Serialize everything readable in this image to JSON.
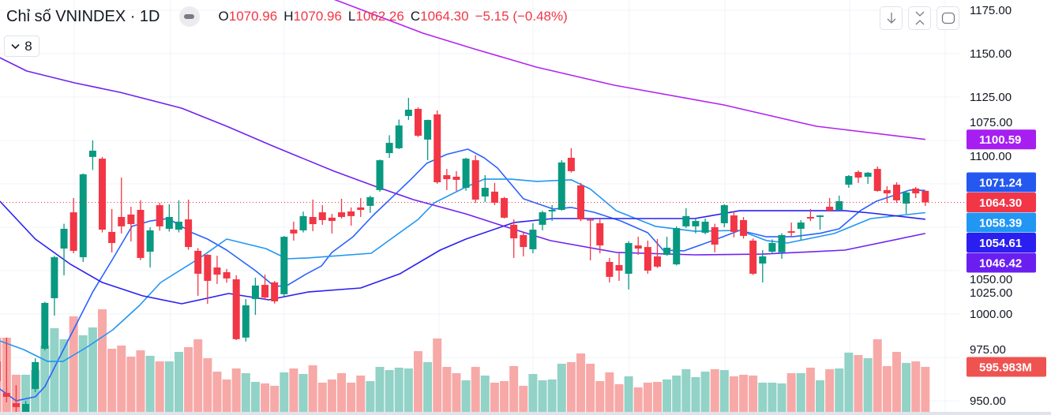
{
  "header": {
    "title": "Chỉ số VNINDEX · 1D",
    "o_label": "O",
    "o_value": "1070.96",
    "h_label": "H",
    "h_value": "1070.96",
    "l_label": "L",
    "l_value": "1062.26",
    "c_label": "C",
    "c_value": "1064.30",
    "change": "−5.15 (−0.48%)",
    "indicator_count": "8"
  },
  "toolbar": {
    "scroll_to_latest_icon": "arrow-down-icon",
    "auto_scale_icon": "collapse-vertical-icon",
    "fullscreen_icon": "fullscreen-icon"
  },
  "colors": {
    "up": "#089981",
    "down": "#f23645",
    "volume_up": "#92d2c7",
    "volume_down": "#f7a9a7",
    "ma_purple": "#b124f2",
    "ma_blue": "#2962ff",
    "ma_lightblue": "#2196f3",
    "ma_indigo": "#2a1ff0",
    "ma_violet": "#7022f0"
  },
  "chart_data": {
    "type": "candlestick",
    "title": "Chỉ số VNINDEX · 1D",
    "ylim": [
      944,
      1181
    ],
    "y_ticks": [
      "1175.00",
      "1150.00",
      "1125.00",
      "1100.00",
      "1075.00",
      "1050.00",
      "1025.00",
      "1000.00",
      "975.00",
      "950.00"
    ],
    "y_tick_values": [
      1175,
      1150,
      1125,
      1100,
      1075,
      1050,
      1025,
      1000,
      975,
      950
    ],
    "grid": true,
    "last_price": 1064.3,
    "candles_ohlc": [
      [
        972.7,
        975,
        958,
        961.4
      ],
      [
        954.5,
        986.4,
        949.1,
        952.3
      ],
      [
        948.6,
        959,
        943,
        946.4
      ],
      [
        943.2,
        950,
        941,
        948.2
      ],
      [
        956.8,
        974.5,
        955,
        972.3
      ],
      [
        980.0,
        1007,
        979,
        1006.4
      ],
      [
        1009.1,
        1033.5,
        999.1,
        1032.7
      ],
      [
        1037.7,
        1052,
        1022.3,
        1049.1
      ],
      [
        1058.6,
        1066.8,
        1035,
        1036.4
      ],
      [
        1032.7,
        1081,
        1030,
        1080.5
      ],
      [
        1090.5,
        1100,
        1083,
        1094.1
      ],
      [
        1089.5,
        1090.5,
        1047,
        1048.6
      ],
      [
        1047.3,
        1060.5,
        1035.5,
        1040.9
      ],
      [
        1055.9,
        1078.6,
        1046.4,
        1050.5
      ],
      [
        1057.3,
        1061.8,
        1041.8,
        1051.8
      ],
      [
        1060.0,
        1065.5,
        1031,
        1032.3
      ],
      [
        1035.9,
        1050,
        1026.8,
        1048.2
      ],
      [
        1062.7,
        1064,
        1048,
        1050.5
      ],
      [
        1049.1,
        1063.2,
        1047.5,
        1055.9
      ],
      [
        1048.6,
        1065.5,
        1047,
        1053.2
      ],
      [
        1054.5,
        1065.9,
        1037,
        1038.6
      ],
      [
        1036.4,
        1038,
        1010.5,
        1023.2
      ],
      [
        1034.1,
        1034.5,
        1005.9,
        1019.1
      ],
      [
        1026.8,
        1033.6,
        1017.3,
        1022.7
      ],
      [
        1024.1,
        1026,
        1018,
        1020.5
      ],
      [
        1020.0,
        1022.3,
        985,
        985.5
      ],
      [
        986.4,
        1008.6,
        984.1,
        1005.0
      ],
      [
        1008.6,
        1020.9,
        999.5,
        1016.4
      ],
      [
        1016.8,
        1022.7,
        1008,
        1009.5
      ],
      [
        1018.2,
        1019,
        1006,
        1007.3
      ],
      [
        1011.4,
        1045,
        1010,
        1044.5
      ],
      [
        1048.6,
        1053.2,
        1042.3,
        1046.4
      ],
      [
        1048.2,
        1059,
        1047,
        1056.4
      ],
      [
        1055.9,
        1065.9,
        1047.7,
        1051.8
      ],
      [
        1058.6,
        1062.7,
        1051.4,
        1054.1
      ],
      [
        1055.5,
        1057.7,
        1046.4,
        1053.6
      ],
      [
        1058.6,
        1066.4,
        1055.0,
        1055.9
      ],
      [
        1059.1,
        1061.4,
        1050.9,
        1056.4
      ],
      [
        1061.4,
        1066.8,
        1055.9,
        1060.0
      ],
      [
        1062.3,
        1068.2,
        1058.2,
        1067.3
      ],
      [
        1071.4,
        1089,
        1070.5,
        1088.6
      ],
      [
        1092.7,
        1103,
        1090,
        1098.6
      ],
      [
        1095.5,
        1112,
        1095,
        1108.6
      ],
      [
        1114.1,
        1124.5,
        1111.8,
        1117.7
      ],
      [
        1118.2,
        1119,
        1102,
        1102.7
      ],
      [
        1100.5,
        1112,
        1088.6,
        1111.8
      ],
      [
        1115.0,
        1117.3,
        1075,
        1075.9
      ],
      [
        1080.0,
        1083.6,
        1071.4,
        1077.7
      ],
      [
        1079.1,
        1082.3,
        1070.9,
        1077.3
      ],
      [
        1072.7,
        1090,
        1071,
        1089.5
      ],
      [
        1088.6,
        1091.5,
        1064,
        1065.9
      ],
      [
        1067.7,
        1080,
        1064.5,
        1072.7
      ],
      [
        1070.5,
        1075.5,
        1062.7,
        1064.1
      ],
      [
        1066.8,
        1067.5,
        1055,
        1055.5
      ],
      [
        1051.4,
        1054.5,
        1032.3,
        1043.6
      ],
      [
        1045.5,
        1047,
        1033.2,
        1038.6
      ],
      [
        1037.3,
        1052.3,
        1035,
        1048.6
      ],
      [
        1051.4,
        1059.5,
        1048.2,
        1058.6
      ],
      [
        1059.1,
        1062.7,
        1053.6,
        1060.0
      ],
      [
        1060.0,
        1088.6,
        1059.5,
        1087.3
      ],
      [
        1090.0,
        1095.5,
        1081.5,
        1082.3
      ],
      [
        1074.1,
        1075.5,
        1053.5,
        1054.5
      ],
      [
        1054.5,
        1055,
        1030.9,
        1054.1
      ],
      [
        1052.3,
        1055,
        1035.0,
        1039.5
      ],
      [
        1030.0,
        1032.3,
        1018.2,
        1021.4
      ],
      [
        1028.2,
        1035,
        1019.1,
        1025.0
      ],
      [
        1023.2,
        1042,
        1014.1,
        1040.9
      ],
      [
        1039.5,
        1044.5,
        1034.1,
        1037.7
      ],
      [
        1038.6,
        1042.3,
        1023.2,
        1025.0
      ],
      [
        1033.2,
        1043.2,
        1026.5,
        1027.3
      ],
      [
        1034.1,
        1044.5,
        1033.5,
        1038.2
      ],
      [
        1028.6,
        1050.5,
        1028,
        1049.5
      ],
      [
        1050.5,
        1060.9,
        1049.5,
        1056.4
      ],
      [
        1050.5,
        1055,
        1046.5,
        1053.6
      ],
      [
        1046.8,
        1055,
        1045.9,
        1053.2
      ],
      [
        1050.0,
        1052,
        1035.5,
        1040.0
      ],
      [
        1052.3,
        1063.2,
        1050.0,
        1062.7
      ],
      [
        1056.8,
        1059.1,
        1044.1,
        1047.3
      ],
      [
        1054.1,
        1055.9,
        1043.5,
        1045.0
      ],
      [
        1042.3,
        1043.5,
        1022.5,
        1023.2
      ],
      [
        1029.1,
        1036.8,
        1018.2,
        1033.2
      ],
      [
        1035.9,
        1043,
        1034.5,
        1040.9
      ],
      [
        1035.5,
        1046.5,
        1031.8,
        1045.5
      ],
      [
        1047.7,
        1052.7,
        1044.5,
        1046.8
      ],
      [
        1049.1,
        1054.1,
        1042.7,
        1052.7
      ],
      [
        1055.9,
        1060.5,
        1053.5,
        1055.0
      ],
      [
        1055.9,
        1057,
        1048.6,
        1056.8
      ],
      [
        1061.8,
        1066.8,
        1059,
        1059.5
      ],
      [
        1060.0,
        1068.2,
        1059.5,
        1065.0
      ],
      [
        1074.5,
        1080,
        1072.7,
        1079.5
      ],
      [
        1081.8,
        1082.7,
        1075.5,
        1078.6
      ],
      [
        1079.1,
        1081.9,
        1075.0,
        1081.4
      ],
      [
        1083.6,
        1085.0,
        1070.5,
        1070.9
      ],
      [
        1071.4,
        1073.6,
        1064.1,
        1069.5
      ],
      [
        1074.5,
        1075.9,
        1064.1,
        1065.5
      ],
      [
        1063.6,
        1070.9,
        1057.7,
        1070.0
      ],
      [
        1072.3,
        1073.2,
        1066.8,
        1069.5
      ],
      [
        1070.96,
        1070.96,
        1062.26,
        1064.3
      ]
    ],
    "volume_millions": [
      983,
      983,
      492,
      492,
      554,
      879,
      1109,
      962,
      1266,
      1015,
      1119,
      1360,
      837,
      879,
      732,
      816,
      743,
      669,
      669,
      795,
      858,
      962,
      711,
      533,
      429,
      575,
      513,
      397,
      377,
      345,
      523,
      575,
      502,
      617,
      387,
      429,
      513,
      387,
      481,
      408,
      596,
      554,
      586,
      575,
      805,
      659,
      973,
      596,
      513,
      418,
      596,
      481,
      387,
      408,
      607,
      345,
      502,
      418,
      429,
      638,
      659,
      774,
      638,
      408,
      523,
      366,
      471,
      324,
      387,
      397,
      429,
      481,
      565,
      460,
      533,
      565,
      554,
      471,
      492,
      481,
      387,
      387,
      377,
      513,
      513,
      586,
      418,
      565,
      575,
      785,
      753,
      711,
      962,
      607,
      795,
      649,
      669,
      595.983
    ],
    "moving_averages": [
      {
        "name": "ma-purple",
        "color": "#b124f2",
        "last": 1100.59,
        "points": [
          [
            25,
            1199
          ],
          [
            35.4,
            1180.9
          ],
          [
            44.5,
            1161.8
          ],
          [
            49.9,
            1152.7
          ],
          [
            56.3,
            1142.3
          ],
          [
            64.5,
            1131.8
          ],
          [
            75.9,
            1120.5
          ],
          [
            85.6,
            1108.2
          ],
          [
            97,
            1100.59
          ]
        ]
      },
      {
        "name": "ma-blue",
        "color": "#2962ff",
        "last": 1071.24,
        "points": [
          [
            0.3,
            956.8
          ],
          [
            2,
            950.0
          ],
          [
            4,
            952.3
          ],
          [
            5,
            958.2
          ],
          [
            7.2,
            982.3
          ],
          [
            10,
            1012.7
          ],
          [
            12.1,
            1031.8
          ],
          [
            14.1,
            1050.5
          ],
          [
            16,
            1053.6
          ],
          [
            17.9,
            1055.0
          ],
          [
            20.4,
            1046.8
          ],
          [
            22,
            1043.2
          ],
          [
            24,
            1036.8
          ],
          [
            27,
            1025.0
          ],
          [
            29,
            1015.9
          ],
          [
            30.3,
            1016.4
          ],
          [
            32.2,
            1022.7
          ],
          [
            33.9,
            1027.7
          ],
          [
            35,
            1035.5
          ],
          [
            37.2,
            1044.5
          ],
          [
            39.3,
            1056.8
          ],
          [
            43.2,
            1077.3
          ],
          [
            44.9,
            1086.8
          ],
          [
            47,
            1092
          ],
          [
            49.2,
            1095.0
          ],
          [
            50.9,
            1090.0
          ],
          [
            52.3,
            1084.1
          ],
          [
            55,
            1066.4
          ],
          [
            58.1,
            1060.5
          ],
          [
            60,
            1061.4
          ],
          [
            62.4,
            1058.6
          ],
          [
            65.2,
            1053.6
          ],
          [
            68,
            1046.8
          ],
          [
            69.6,
            1036.8
          ],
          [
            71.8,
            1036.4
          ],
          [
            74.8,
            1042.3
          ],
          [
            77.6,
            1048.2
          ],
          [
            80.4,
            1044.5
          ],
          [
            83.1,
            1044.5
          ],
          [
            86,
            1046.5
          ],
          [
            88,
            1049.1
          ],
          [
            90.2,
            1059.5
          ],
          [
            91.9,
            1065.0
          ],
          [
            95.4,
            1071.4
          ],
          [
            97,
            1071.24
          ]
        ]
      },
      {
        "name": "ma-lightblue",
        "color": "#2196f3",
        "last": 1058.39,
        "points": [
          [
            0.3,
            984.5
          ],
          [
            2.8,
            979.5
          ],
          [
            5.3,
            972.7
          ],
          [
            6.9,
            972.7
          ],
          [
            9.4,
            980.9
          ],
          [
            12.1,
            990.9
          ],
          [
            14.9,
            1005.0
          ],
          [
            17.1,
            1018.2
          ],
          [
            21.2,
            1032.3
          ],
          [
            24,
            1043.2
          ],
          [
            28.1,
            1037.7
          ],
          [
            30.3,
            1031.8
          ],
          [
            32.5,
            1032.3
          ],
          [
            39.1,
            1035.0
          ],
          [
            44,
            1054.5
          ],
          [
            45.7,
            1064.1
          ],
          [
            49,
            1073.2
          ],
          [
            50.9,
            1077.7
          ],
          [
            53.7,
            1077.7
          ],
          [
            56.4,
            1076.4
          ],
          [
            60,
            1077.3
          ],
          [
            62,
            1072
          ],
          [
            64.7,
            1059.5
          ],
          [
            68.8,
            1050.5
          ],
          [
            72.9,
            1047.7
          ],
          [
            77.6,
            1048.2
          ],
          [
            80.4,
            1042.3
          ],
          [
            82.6,
            1040.9
          ],
          [
            87.5,
            1046.4
          ],
          [
            91.3,
            1055.0
          ],
          [
            97,
            1058.39
          ]
        ]
      },
      {
        "name": "ma-indigo",
        "color": "#2a1ff0",
        "last": 1054.61,
        "points": [
          [
            0.3,
            1065.0
          ],
          [
            4,
            1043.2
          ],
          [
            7.7,
            1028.6
          ],
          [
            11,
            1018.2
          ],
          [
            15.2,
            1010.5
          ],
          [
            19.3,
            1005.9
          ],
          [
            24.2,
            1011.8
          ],
          [
            28.4,
            1008.2
          ],
          [
            32.5,
            1012.7
          ],
          [
            38,
            1015.0
          ],
          [
            42.1,
            1023.2
          ],
          [
            46.3,
            1036.8
          ],
          [
            49,
            1043.2
          ],
          [
            54,
            1052.7
          ],
          [
            58.1,
            1055.0
          ],
          [
            72.9,
            1055.0
          ],
          [
            77.6,
            1059.5
          ],
          [
            88.6,
            1059.5
          ],
          [
            91.3,
            1058.2
          ],
          [
            97,
            1054.61
          ]
        ]
      },
      {
        "name": "ma-violet",
        "color": "#7022f0",
        "last": 1046.42,
        "points": [
          [
            0.3,
            1147.7
          ],
          [
            3.1,
            1140.0
          ],
          [
            8.1,
            1133.2
          ],
          [
            12.9,
            1127.7
          ],
          [
            19.3,
            1118.6
          ],
          [
            24,
            1108.2
          ],
          [
            28.8,
            1096.8
          ],
          [
            35.2,
            1082.3
          ],
          [
            39.7,
            1073.2
          ],
          [
            43.5,
            1065.9
          ],
          [
            49,
            1057.7
          ],
          [
            52.5,
            1051.4
          ],
          [
            57.8,
            1042.3
          ],
          [
            64.7,
            1035.5
          ],
          [
            72.9,
            1034.1
          ],
          [
            80,
            1034.5
          ],
          [
            88.6,
            1036.8
          ],
          [
            97,
            1046.42
          ]
        ]
      }
    ],
    "price_labels": [
      {
        "text": "1100.59",
        "value": 1100.59,
        "color": "#a61ff0"
      },
      {
        "text": "1071.24",
        "value": 1071.24,
        "color": "#2458f0"
      },
      {
        "text": "1064.30",
        "value": 1064.3,
        "color": "#f23645"
      },
      {
        "text": "1058.39",
        "value": 1058.39,
        "color": "#2196f3"
      },
      {
        "text": "1054.61",
        "value": 1054.61,
        "color": "#2a1ff0"
      },
      {
        "text": "1046.42",
        "value": 1046.42,
        "color": "#6a1ff0"
      }
    ],
    "volume_label": {
      "text": "595.983M",
      "color": "#ef5350"
    }
  }
}
